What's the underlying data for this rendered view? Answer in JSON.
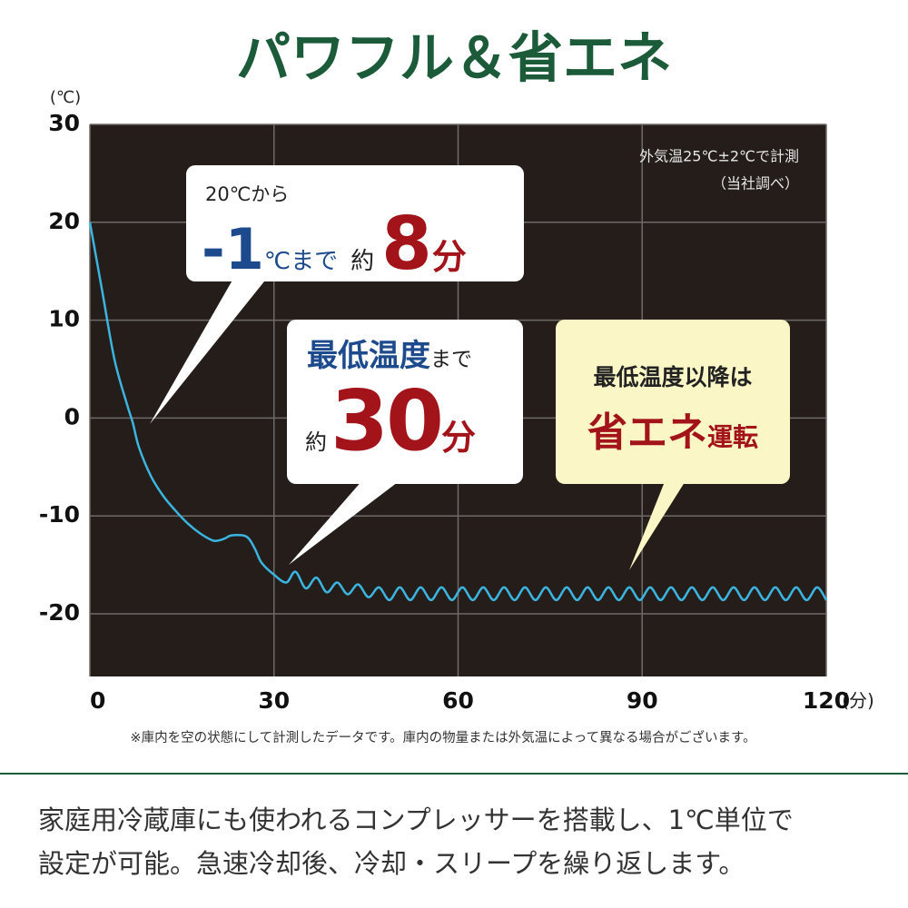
{
  "chart_data": {
    "type": "line",
    "title": "パワフル＆省エネ",
    "ylabel": "(℃)",
    "xlabel": "(分)",
    "note": [
      "外気温25℃±2℃で計測",
      "（当社調べ）"
    ],
    "callouts": [
      [
        "20℃から",
        "-1",
        "℃まで",
        "約",
        "8",
        "分"
      ],
      [
        "最低温度",
        "まで",
        "約",
        "30",
        "分"
      ],
      [
        "最低温度以降は",
        "省エネ",
        "運転"
      ]
    ],
    "footnote": "※庫内を空の状態にして計測したデータです。庫内の物量または外気温によって異なる場合がございます。",
    "description": [
      "家庭用冷蔵庫にも使われるコンプレッサーを搭載し、1℃単位で",
      "設定が可能。急速冷却後、冷却・スリープを繰り返します。"
    ],
    "color": "#3cb4e0",
    "grid": true,
    "xlim": [
      0,
      120
    ],
    "xticks": [
      0,
      30,
      60,
      90,
      120
    ],
    "ylim": [
      -26.4,
      30
    ],
    "yticks": [
      30,
      20,
      10,
      0,
      -10,
      -20
    ],
    "x": [
      0,
      2,
      4,
      6,
      7,
      8,
      10,
      12,
      14,
      16,
      18,
      20,
      21,
      22,
      23,
      25,
      26,
      27,
      28,
      30,
      32,
      33.5,
      35.2,
      36.9,
      38.6,
      40.3,
      42.0,
      43.7,
      45.4,
      47.1,
      48.8,
      50.5,
      52.2,
      53.9,
      55.6,
      57.3,
      59.0,
      60.7,
      62.4,
      64.1,
      65.8,
      67.5,
      69.2,
      70.9,
      72.6,
      74.3,
      76.0,
      77.7,
      79.4,
      81.1,
      82.8,
      84.5,
      86.2,
      87.9,
      89.6,
      91.3,
      93.0,
      94.7,
      96.4,
      98.1,
      99.8,
      101.5,
      103.2,
      104.9,
      106.6,
      108.3,
      110.0,
      111.7,
      113.4,
      115.1,
      116.8,
      118.5,
      120
    ],
    "values": [
      20,
      13,
      6,
      1.5,
      -0.5,
      -3,
      -6,
      -8,
      -9.5,
      -10.8,
      -11.8,
      -12.5,
      -12.5,
      -12.3,
      -12,
      -12,
      -12.4,
      -13.5,
      -14.8,
      -16,
      -16.8,
      -15.7,
      -17.4,
      -16.3,
      -17.8,
      -16.8,
      -18.0,
      -17.0,
      -18.3,
      -17.3,
      -18.6,
      -17.3,
      -18.6,
      -17.3,
      -18.6,
      -17.3,
      -18.6,
      -17.3,
      -18.6,
      -17.3,
      -18.6,
      -17.3,
      -18.6,
      -17.3,
      -18.6,
      -17.3,
      -18.6,
      -17.3,
      -18.6,
      -17.3,
      -18.6,
      -17.3,
      -18.6,
      -17.3,
      -18.6,
      -17.3,
      -18.6,
      -17.3,
      -18.6,
      -17.3,
      -18.6,
      -17.3,
      -18.6,
      -17.3,
      -18.6,
      -17.3,
      -18.6,
      -17.3,
      -18.6,
      -17.3,
      -18.6,
      -17.3,
      -18.6
    ]
  }
}
